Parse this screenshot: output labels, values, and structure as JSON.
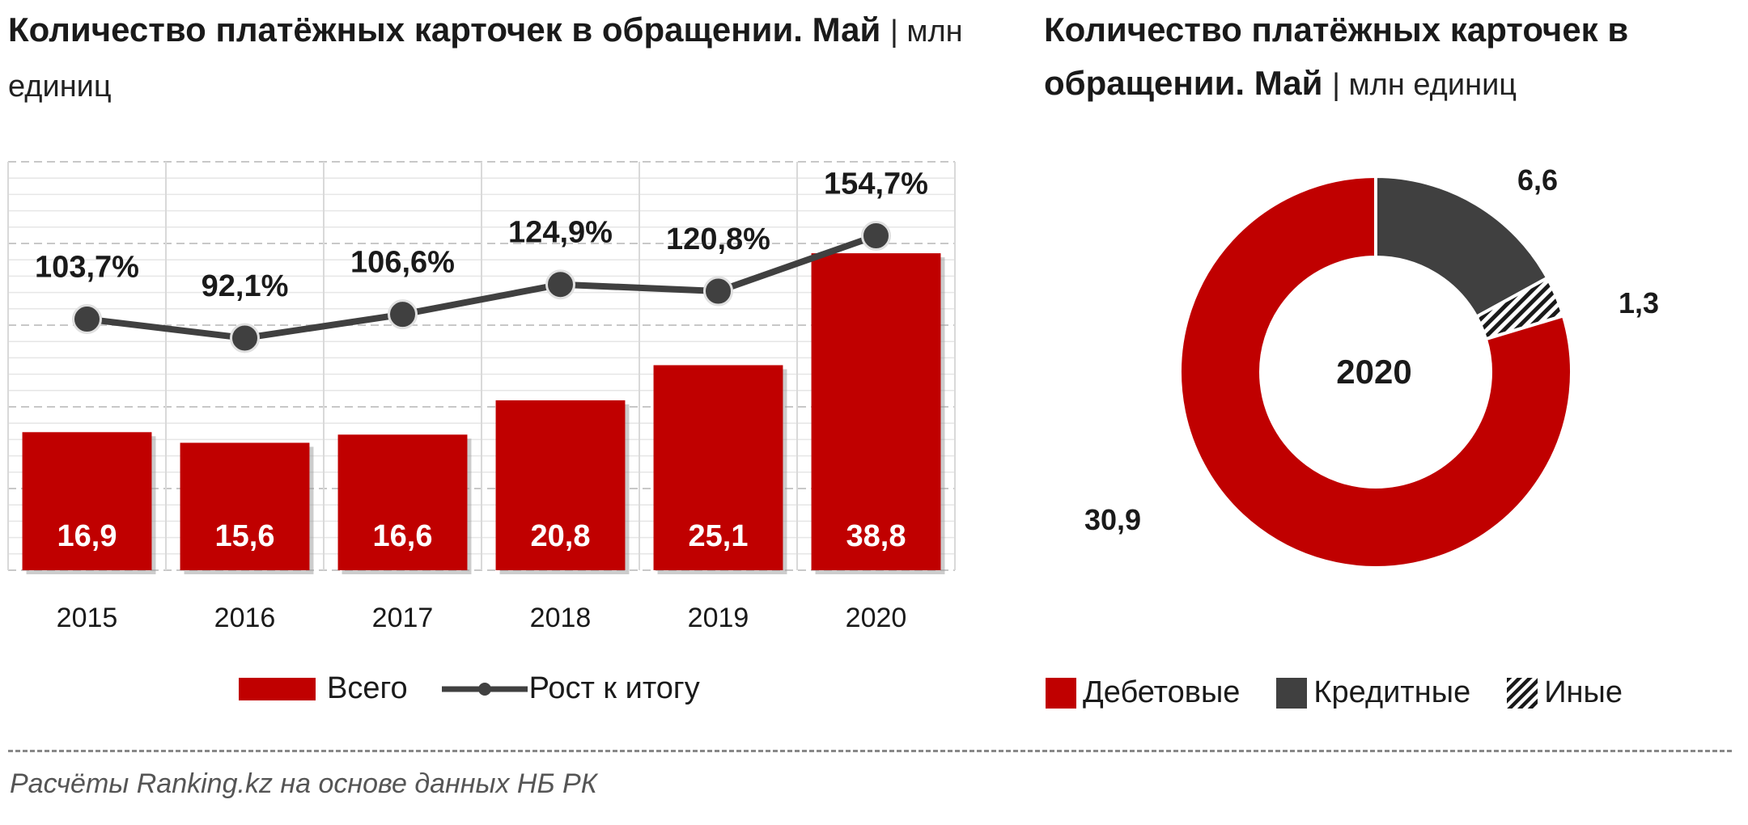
{
  "left": {
    "title": "Количество платёжных  карточек в обращении. Май",
    "unit": "| млн единиц",
    "legend": {
      "bars": "Всего",
      "line": "Рост к итогу"
    }
  },
  "right": {
    "title": "Количество платёжных карточек в обращении. Май",
    "unit": "| млн единиц",
    "center_label": "2020",
    "legend": [
      "Дебетовые",
      "Кредитные",
      "Иные"
    ]
  },
  "source": "Расчёты Ranking.kz на основе данных НБ РК",
  "colors": {
    "bar": "#C00000",
    "line": "#404040",
    "credit": "#404040",
    "grid": "#D9D9D9"
  },
  "chart_data": [
    {
      "type": "bar",
      "categories": [
        "2015",
        "2016",
        "2017",
        "2018",
        "2019",
        "2020"
      ],
      "series": [
        {
          "name": "Всего",
          "values": [
            16.9,
            15.6,
            16.6,
            20.8,
            25.1,
            38.8
          ],
          "labels": [
            "16,9",
            "15,6",
            "16,6",
            "20,8",
            "25,1",
            "38,8"
          ]
        },
        {
          "name": "Рост к итогу",
          "type": "line",
          "values": [
            103.7,
            92.1,
            106.6,
            124.9,
            120.8,
            154.7
          ],
          "labels": [
            "103,7%",
            "92,1%",
            "106,6%",
            "124,9%",
            "120,8%",
            "154,7%"
          ]
        }
      ],
      "ylim": [
        0,
        50
      ],
      "y2lim": [
        -50,
        200
      ],
      "grid": true,
      "legend_position": "bottom"
    },
    {
      "type": "pie",
      "donut": true,
      "categories": [
        "Дебетовые",
        "Кредитные",
        "Иные"
      ],
      "values": [
        30.9,
        6.6,
        1.3
      ],
      "labels": [
        "30,9",
        "6,6",
        "1,3"
      ],
      "legend_position": "bottom"
    }
  ]
}
